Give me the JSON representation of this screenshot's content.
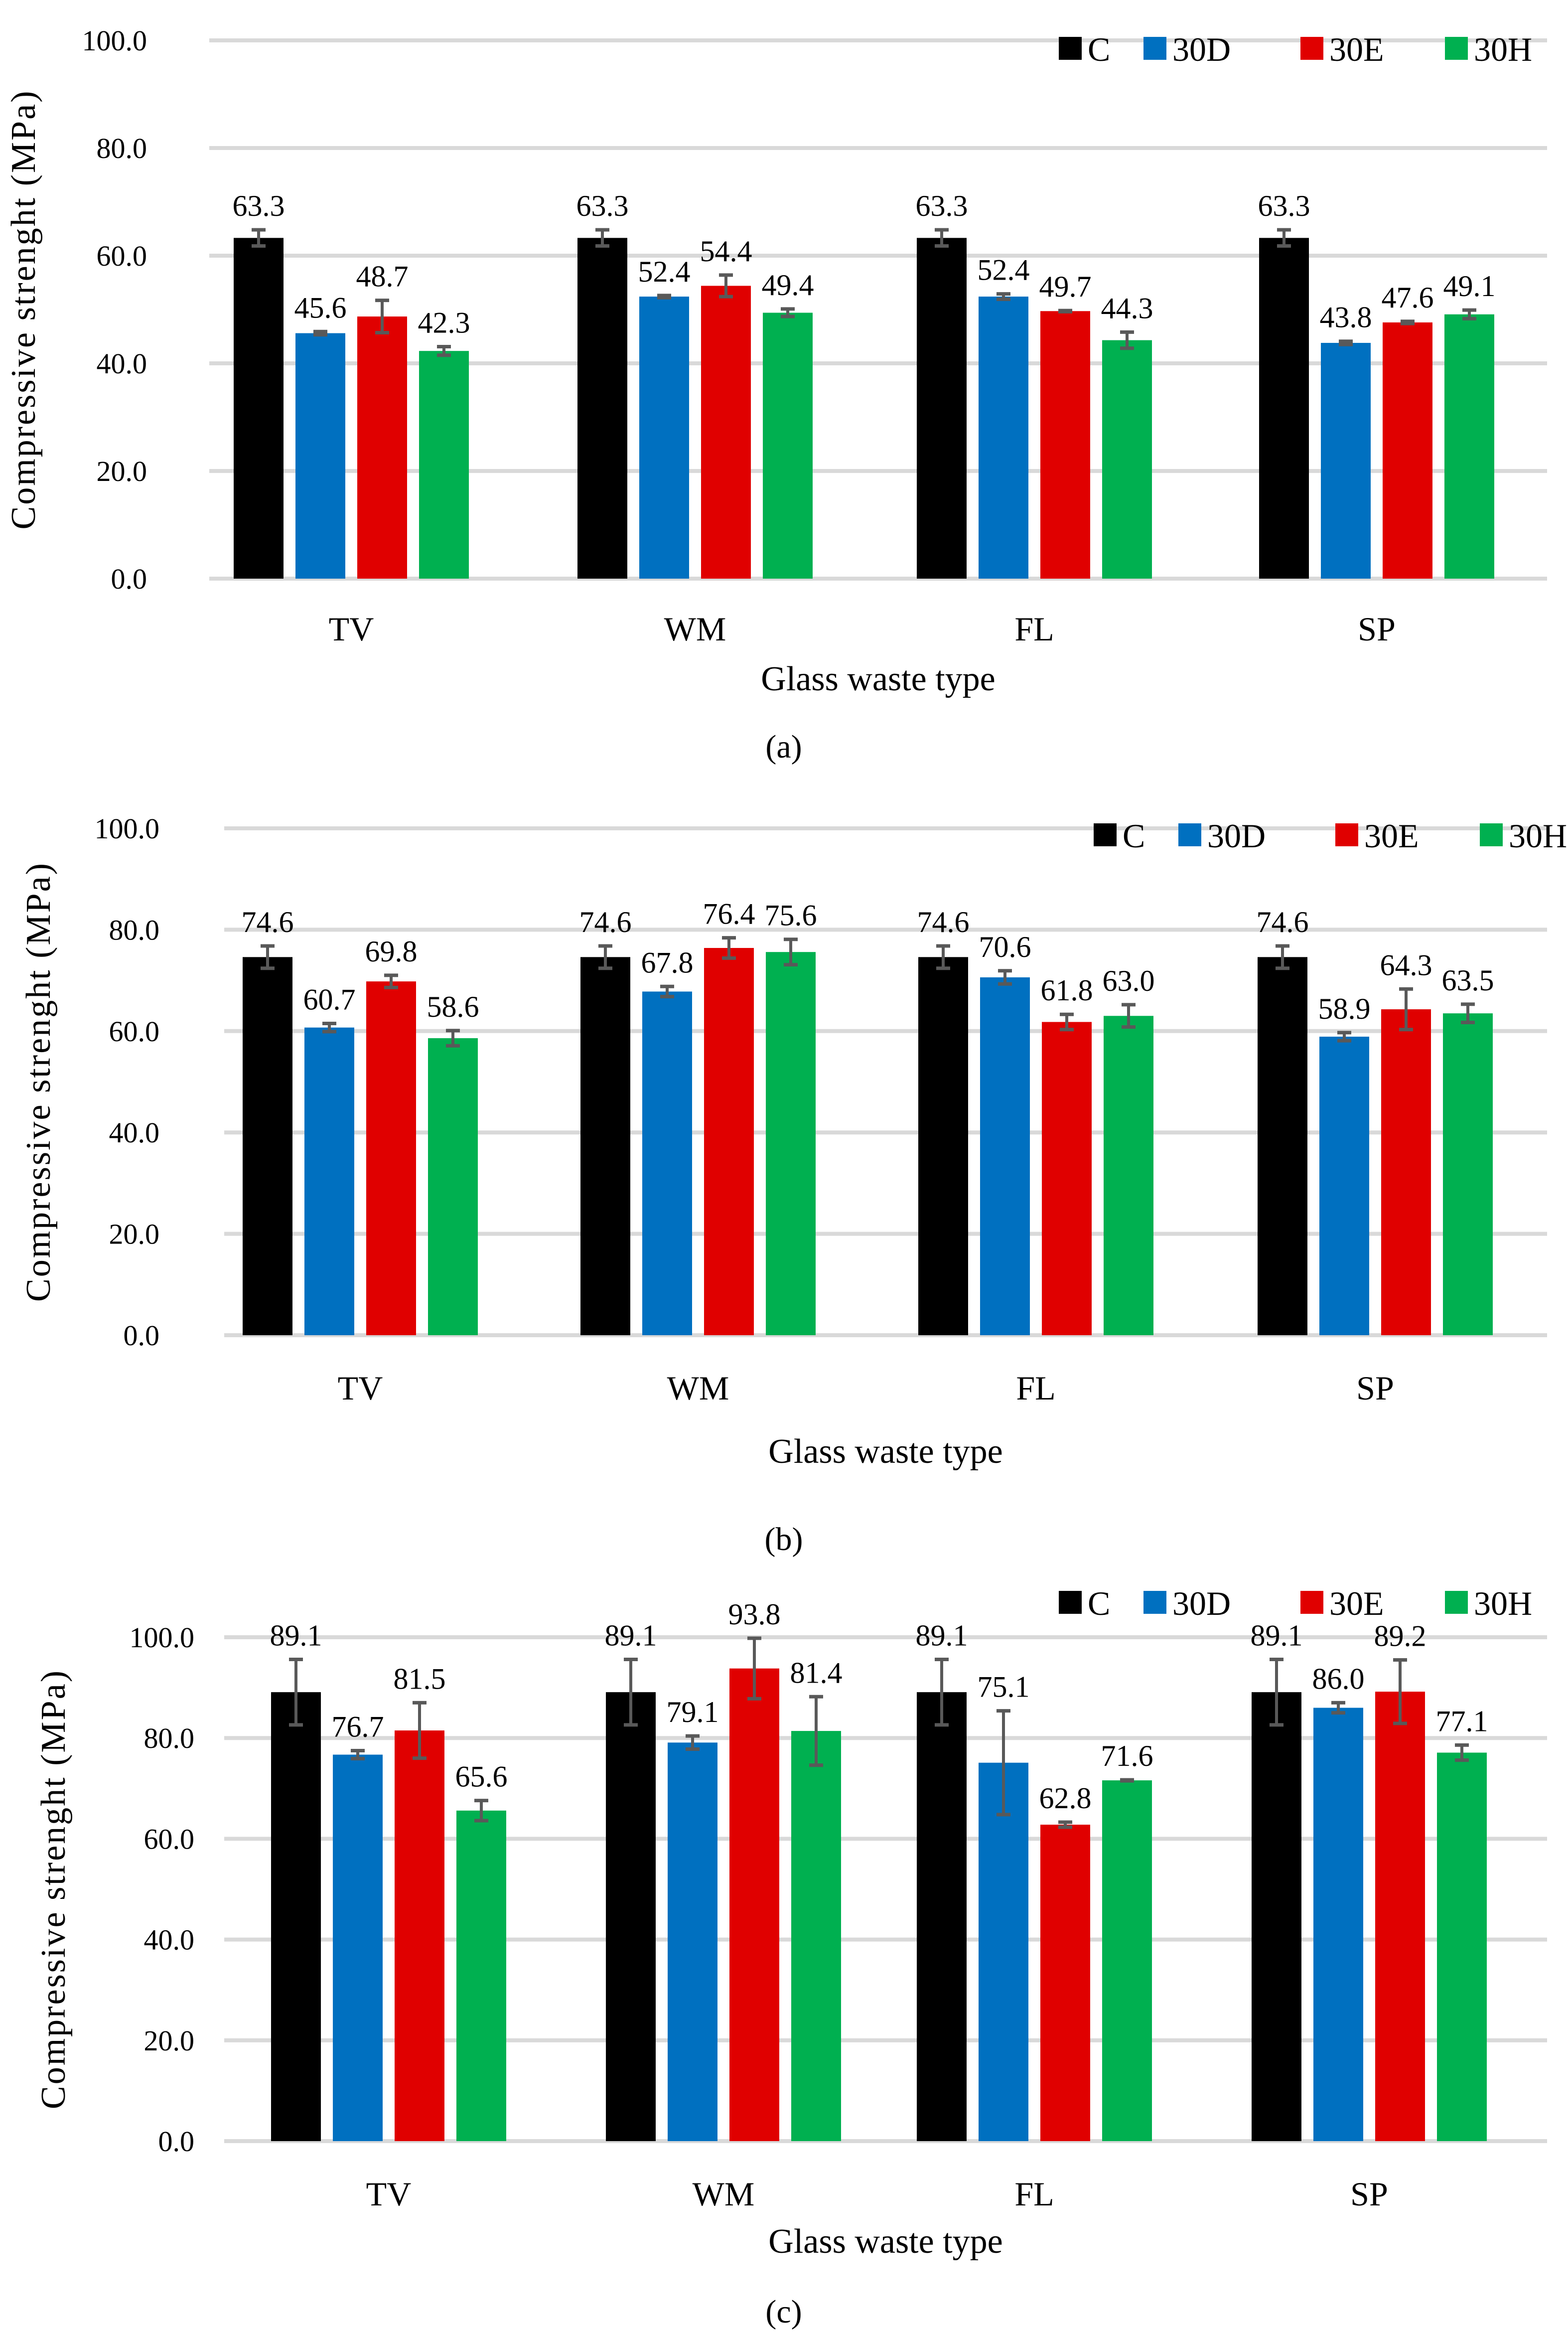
{
  "chart_data": [
    {
      "type": "bar",
      "caption": "(a)",
      "xlabel": "Glass waste type",
      "ylabel": "Compressive strenght  (MPa)",
      "ylim": [
        0,
        100
      ],
      "yticks": [
        "0.0",
        "20.0",
        "40.0",
        "60.0",
        "80.0",
        "100.0"
      ],
      "grid": true,
      "legend_placement": "top-right",
      "categories": [
        "TV",
        "WM",
        "FL",
        "SP"
      ],
      "series": [
        {
          "name": "C",
          "color": "#000000",
          "values": [
            63.3,
            63.3,
            63.3,
            63.3
          ],
          "labels": [
            "63.3",
            "63.3",
            "63.3",
            "63.3"
          ],
          "errors": [
            1.5,
            1.5,
            1.5,
            1.5
          ]
        },
        {
          "name": "30D",
          "color": "#0070C0",
          "values": [
            45.6,
            52.4,
            52.4,
            43.8
          ],
          "labels": [
            "45.6",
            "52.4",
            "52.4",
            "43.8"
          ],
          "errors": [
            0.3,
            0.2,
            0.5,
            0.3
          ]
        },
        {
          "name": "30E",
          "color": "#E00000",
          "values": [
            48.7,
            54.4,
            49.7,
            47.6
          ],
          "labels": [
            "48.7",
            "54.4",
            "49.7",
            "47.6"
          ],
          "errors": [
            3.0,
            2.0,
            0.1,
            0.2
          ]
        },
        {
          "name": "30H",
          "color": "#00B050",
          "values": [
            42.3,
            49.4,
            44.3,
            49.1
          ],
          "labels": [
            "42.3",
            "49.4",
            "44.3",
            "49.1"
          ],
          "errors": [
            0.8,
            0.7,
            1.5,
            0.8
          ]
        }
      ]
    },
    {
      "type": "bar",
      "caption": "(b)",
      "xlabel": "Glass waste type",
      "ylabel": "Compressive strenght  (MPa)",
      "ylim": [
        0,
        100
      ],
      "yticks": [
        "0.0",
        "20.0",
        "40.0",
        "60.0",
        "80.0",
        "100.0"
      ],
      "grid": true,
      "legend_placement": "top-right",
      "categories": [
        "TV",
        "WM",
        "FL",
        "SP"
      ],
      "series": [
        {
          "name": "C",
          "color": "#000000",
          "values": [
            74.6,
            74.6,
            74.6,
            74.6
          ],
          "labels": [
            "74.6",
            "74.6",
            "74.6",
            "74.6"
          ],
          "errors": [
            2.2,
            2.2,
            2.2,
            2.2
          ]
        },
        {
          "name": "30D",
          "color": "#0070C0",
          "values": [
            60.7,
            67.8,
            70.6,
            58.9
          ],
          "labels": [
            "60.7",
            "67.8",
            "70.6",
            "58.9"
          ],
          "errors": [
            0.8,
            1.0,
            1.3,
            0.8
          ]
        },
        {
          "name": "30E",
          "color": "#E00000",
          "values": [
            69.8,
            76.4,
            61.8,
            64.3
          ],
          "labels": [
            "69.8",
            "76.4",
            "61.8",
            "64.3"
          ],
          "errors": [
            1.2,
            2.0,
            1.5,
            4.0
          ]
        },
        {
          "name": "30H",
          "color": "#00B050",
          "values": [
            58.6,
            75.6,
            63.0,
            63.5
          ],
          "labels": [
            "58.6",
            "75.6",
            "63.0",
            "63.5"
          ],
          "errors": [
            1.5,
            2.5,
            2.2,
            1.8
          ]
        }
      ]
    },
    {
      "type": "bar",
      "caption": "(c)",
      "xlabel": "Glass waste type",
      "ylabel": "Compressive strenght  (MPa)",
      "ylim": [
        0,
        100
      ],
      "yticks": [
        "0.0",
        "20.0",
        "40.0",
        "60.0",
        "80.0",
        "100.0"
      ],
      "grid": true,
      "legend_placement": "top-right",
      "categories": [
        "TV",
        "WM",
        "FL",
        "SP"
      ],
      "series": [
        {
          "name": "C",
          "color": "#000000",
          "values": [
            89.1,
            89.1,
            89.1,
            89.1
          ],
          "labels": [
            "89.1",
            "89.1",
            "89.1",
            "89.1"
          ],
          "errors": [
            6.5,
            6.5,
            6.5,
            6.5
          ]
        },
        {
          "name": "30D",
          "color": "#0070C0",
          "values": [
            76.7,
            79.1,
            75.1,
            86.0
          ],
          "labels": [
            "76.7",
            "79.1",
            "75.1",
            "86.0"
          ],
          "errors": [
            0.8,
            1.3,
            10.3,
            1.0
          ]
        },
        {
          "name": "30E",
          "color": "#E00000",
          "values": [
            81.5,
            93.8,
            62.8,
            89.2
          ],
          "labels": [
            "81.5",
            "93.8",
            "62.8",
            "89.2"
          ],
          "errors": [
            5.5,
            6.0,
            0.5,
            6.3
          ]
        },
        {
          "name": "30H",
          "color": "#00B050",
          "values": [
            65.6,
            81.4,
            71.6,
            77.1
          ],
          "labels": [
            "65.6",
            "81.4",
            "71.6",
            "77.1"
          ],
          "errors": [
            2.0,
            6.8,
            0.1,
            1.5
          ]
        }
      ]
    }
  ]
}
